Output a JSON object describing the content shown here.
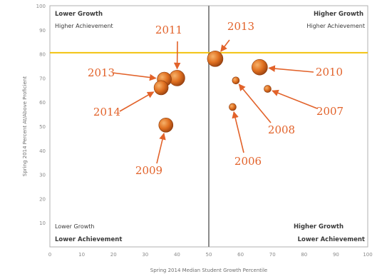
{
  "chart_data": {
    "type": "scatter",
    "xlabel": "Spring 2014 Median Student Growth Percentile",
    "ylabel": "Spring 2014 Percent At/Above Proficient",
    "xlim": [
      0,
      100
    ],
    "ylim": [
      0,
      100
    ],
    "xticks": [
      0,
      10,
      20,
      30,
      40,
      50,
      60,
      70,
      80,
      90,
      100
    ],
    "yticks": [
      10,
      20,
      30,
      40,
      50,
      60,
      70,
      80,
      90,
      100
    ],
    "grid": false,
    "median_line_x": 50,
    "target_line_y": 80.5,
    "colors": {
      "point": "#e07020",
      "target_line": "#f2c20f",
      "median_line": "#8c8c8c",
      "annotation": "#e2622a"
    },
    "quadrants": {
      "top_left": [
        "Lower Growth",
        "Higher Achievement"
      ],
      "top_right": [
        "Higher Growth",
        "Higher Achievement"
      ],
      "bottom_left": [
        "Lower Growth",
        "Lower Achievement"
      ],
      "bottom_right": [
        "Higher Growth",
        "Lower Achievement"
      ]
    },
    "points": [
      {
        "label": "2013",
        "x": 52,
        "y": 78,
        "size": 11
      },
      {
        "label": "2010",
        "x": 66,
        "y": 74.5,
        "size": 11
      },
      {
        "label": "2011",
        "x": 40,
        "y": 70,
        "size": 11
      },
      {
        "label": "2013",
        "x": 36,
        "y": 69.5,
        "size": 10
      },
      {
        "label": "2014",
        "x": 35,
        "y": 66,
        "size": 10
      },
      {
        "label": "2008",
        "x": 58.5,
        "y": 69,
        "size": 5
      },
      {
        "label": "2007",
        "x": 68.5,
        "y": 65.5,
        "size": 5
      },
      {
        "label": "2006",
        "x": 57.5,
        "y": 58,
        "size": 5
      },
      {
        "label": "2009",
        "x": 36.5,
        "y": 50.5,
        "size": 10
      }
    ]
  }
}
